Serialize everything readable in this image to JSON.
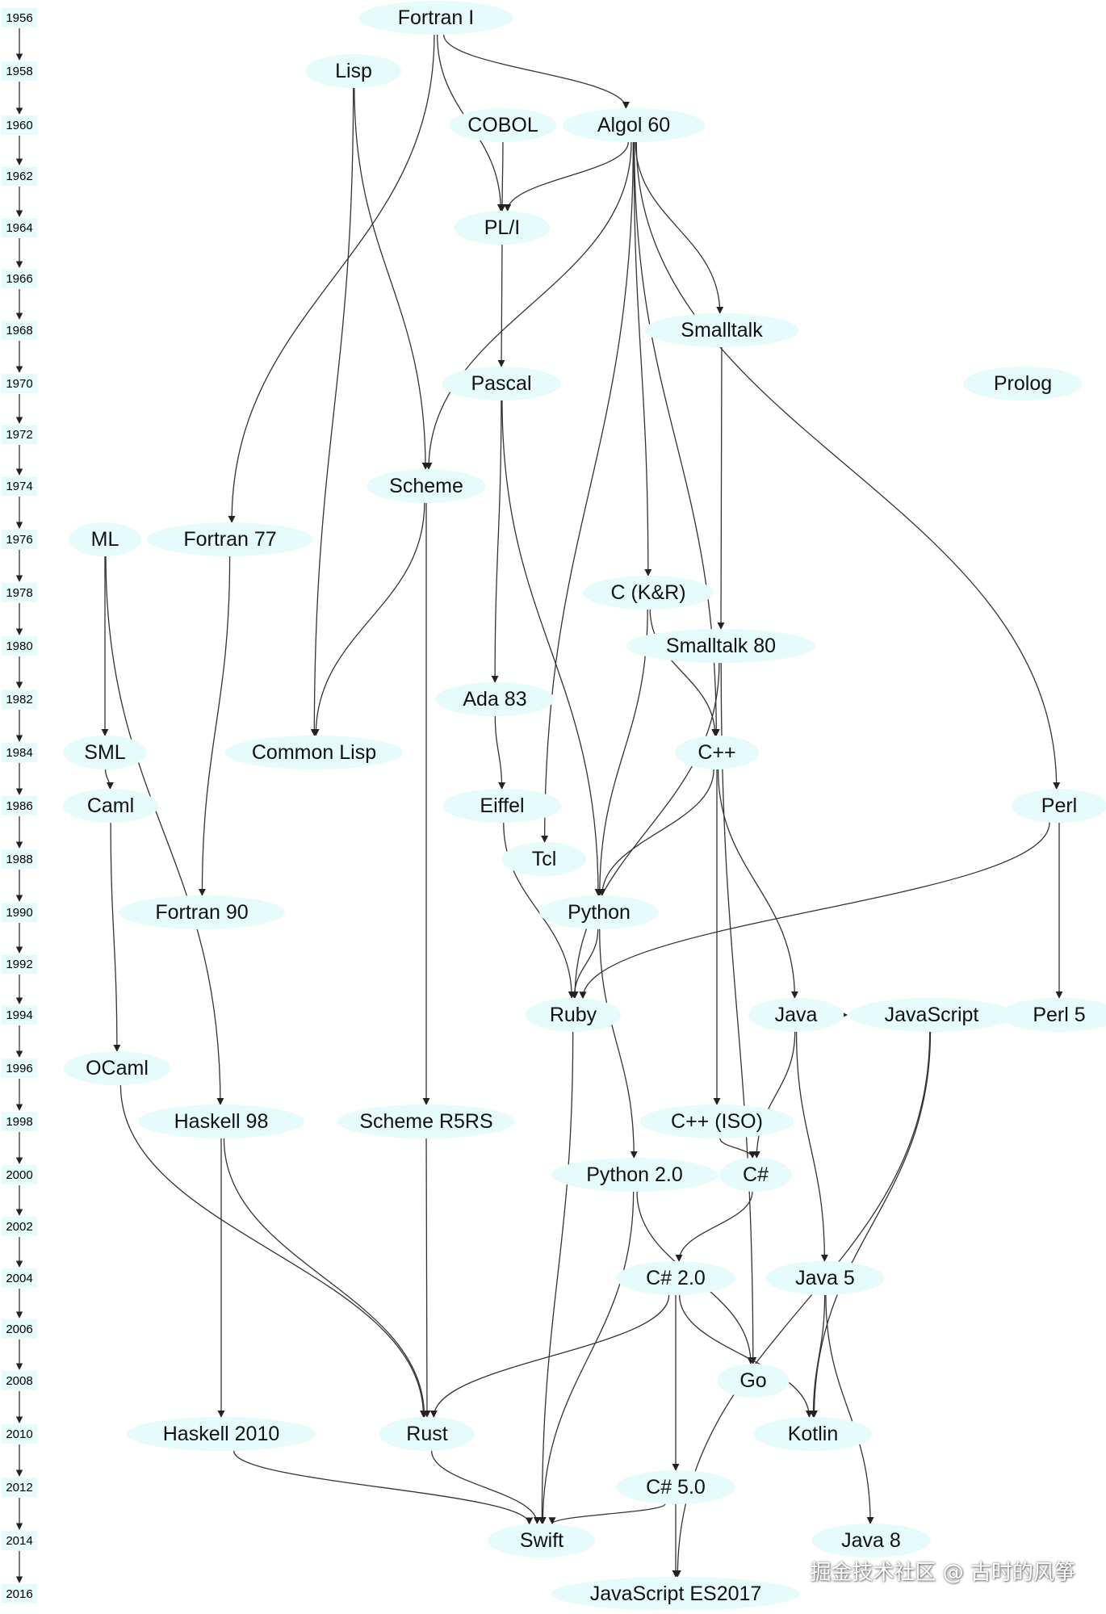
{
  "years": [
    "1956",
    "1958",
    "1960",
    "1962",
    "1964",
    "1966",
    "1968",
    "1970",
    "1972",
    "1974",
    "1976",
    "1978",
    "1980",
    "1982",
    "1984",
    "1986",
    "1988",
    "1990",
    "1992",
    "1994",
    "1996",
    "1998",
    "2000",
    "2002",
    "2004",
    "2006",
    "2008",
    "2010",
    "2012",
    "2014",
    "2016"
  ],
  "nodes": [
    {
      "id": "fortran1",
      "label": "Fortran I",
      "year": "1956"
    },
    {
      "id": "lisp",
      "label": "Lisp",
      "year": "1958"
    },
    {
      "id": "cobol",
      "label": "COBOL",
      "year": "1960"
    },
    {
      "id": "algol60",
      "label": "Algol 60",
      "year": "1960"
    },
    {
      "id": "pli",
      "label": "PL/I",
      "year": "1964"
    },
    {
      "id": "smalltalk",
      "label": "Smalltalk",
      "year": "1968"
    },
    {
      "id": "pascal",
      "label": "Pascal",
      "year": "1970"
    },
    {
      "id": "prolog",
      "label": "Prolog",
      "year": "1970"
    },
    {
      "id": "scheme",
      "label": "Scheme",
      "year": "1974"
    },
    {
      "id": "ml",
      "label": "ML",
      "year": "1976"
    },
    {
      "id": "fortran77",
      "label": "Fortran 77",
      "year": "1976"
    },
    {
      "id": "ckr",
      "label": "C (K&R)",
      "year": "1978"
    },
    {
      "id": "smalltalk80",
      "label": "Smalltalk 80",
      "year": "1980"
    },
    {
      "id": "ada83",
      "label": "Ada 83",
      "year": "1982"
    },
    {
      "id": "sml",
      "label": "SML",
      "year": "1984"
    },
    {
      "id": "commonlisp",
      "label": "Common Lisp",
      "year": "1984"
    },
    {
      "id": "cpp",
      "label": "C++",
      "year": "1984"
    },
    {
      "id": "caml",
      "label": "Caml",
      "year": "1986"
    },
    {
      "id": "eiffel",
      "label": "Eiffel",
      "year": "1986"
    },
    {
      "id": "perl",
      "label": "Perl",
      "year": "1986"
    },
    {
      "id": "tcl",
      "label": "Tcl",
      "year": "1988"
    },
    {
      "id": "fortran90",
      "label": "Fortran 90",
      "year": "1990"
    },
    {
      "id": "python",
      "label": "Python",
      "year": "1990"
    },
    {
      "id": "ruby",
      "label": "Ruby",
      "year": "1994"
    },
    {
      "id": "java",
      "label": "Java",
      "year": "1994"
    },
    {
      "id": "javascript",
      "label": "JavaScript",
      "year": "1994"
    },
    {
      "id": "perl5",
      "label": "Perl 5",
      "year": "1994"
    },
    {
      "id": "ocaml",
      "label": "OCaml",
      "year": "1996"
    },
    {
      "id": "haskell98",
      "label": "Haskell 98",
      "year": "1998"
    },
    {
      "id": "schemer5rs",
      "label": "Scheme R5RS",
      "year": "1998"
    },
    {
      "id": "cppiso",
      "label": "C++ (ISO)",
      "year": "1998"
    },
    {
      "id": "python20",
      "label": "Python 2.0",
      "year": "2000"
    },
    {
      "id": "csharp",
      "label": "C#",
      "year": "2000"
    },
    {
      "id": "csharp20",
      "label": "C# 2.0",
      "year": "2004"
    },
    {
      "id": "java5",
      "label": "Java 5",
      "year": "2004"
    },
    {
      "id": "go",
      "label": "Go",
      "year": "2008"
    },
    {
      "id": "haskell2010",
      "label": "Haskell 2010",
      "year": "2010"
    },
    {
      "id": "rust",
      "label": "Rust",
      "year": "2010"
    },
    {
      "id": "kotlin",
      "label": "Kotlin",
      "year": "2010"
    },
    {
      "id": "csharp50",
      "label": "C# 5.0",
      "year": "2012"
    },
    {
      "id": "swift",
      "label": "Swift",
      "year": "2014"
    },
    {
      "id": "java8",
      "label": "Java 8",
      "year": "2014"
    },
    {
      "id": "es2017",
      "label": "JavaScript ES2017",
      "year": "2016"
    }
  ],
  "edges": [
    [
      "fortran1",
      "fortran77"
    ],
    [
      "fortran1",
      "pli"
    ],
    [
      "fortran1",
      "algol60"
    ],
    [
      "lisp",
      "commonlisp"
    ],
    [
      "lisp",
      "scheme"
    ],
    [
      "cobol",
      "pli"
    ],
    [
      "algol60",
      "pli"
    ],
    [
      "algol60",
      "scheme"
    ],
    [
      "algol60",
      "tcl"
    ],
    [
      "algol60",
      "ckr"
    ],
    [
      "algol60",
      "smalltalk"
    ],
    [
      "algol60",
      "cpp"
    ],
    [
      "algol60",
      "perl"
    ],
    [
      "pli",
      "pascal"
    ],
    [
      "smalltalk",
      "smalltalk80"
    ],
    [
      "pascal",
      "ada83"
    ],
    [
      "pascal",
      "python"
    ],
    [
      "scheme",
      "commonlisp"
    ],
    [
      "scheme",
      "schemer5rs"
    ],
    [
      "ml",
      "sml"
    ],
    [
      "ml",
      "haskell98"
    ],
    [
      "fortran77",
      "fortran90"
    ],
    [
      "ckr",
      "python"
    ],
    [
      "ckr",
      "cpp"
    ],
    [
      "smalltalk80",
      "ruby"
    ],
    [
      "smalltalk80",
      "go"
    ],
    [
      "ada83",
      "eiffel"
    ],
    [
      "sml",
      "caml"
    ],
    [
      "cpp",
      "python"
    ],
    [
      "cpp",
      "cppiso"
    ],
    [
      "cpp",
      "java"
    ],
    [
      "caml",
      "ocaml"
    ],
    [
      "eiffel",
      "ruby"
    ],
    [
      "perl",
      "ruby"
    ],
    [
      "perl",
      "perl5"
    ],
    [
      "python",
      "ruby"
    ],
    [
      "python",
      "python20"
    ],
    [
      "ruby",
      "swift"
    ],
    [
      "java",
      "javascript"
    ],
    [
      "java",
      "csharp"
    ],
    [
      "java",
      "java5"
    ],
    [
      "javascript",
      "kotlin"
    ],
    [
      "javascript",
      "es2017"
    ],
    [
      "ocaml",
      "rust"
    ],
    [
      "haskell98",
      "haskell2010"
    ],
    [
      "haskell98",
      "rust"
    ],
    [
      "schemer5rs",
      "rust"
    ],
    [
      "cppiso",
      "csharp"
    ],
    [
      "python20",
      "swift"
    ],
    [
      "python20",
      "go"
    ],
    [
      "csharp",
      "csharp20"
    ],
    [
      "csharp20",
      "rust"
    ],
    [
      "csharp20",
      "csharp50"
    ],
    [
      "csharp20",
      "kotlin"
    ],
    [
      "java5",
      "kotlin"
    ],
    [
      "java5",
      "java8"
    ],
    [
      "haskell2010",
      "swift"
    ],
    [
      "rust",
      "swift"
    ],
    [
      "csharp50",
      "swift"
    ],
    [
      "csharp50",
      "es2017"
    ]
  ],
  "watermark": "掘金技术社区 @ 古时的风筝"
}
